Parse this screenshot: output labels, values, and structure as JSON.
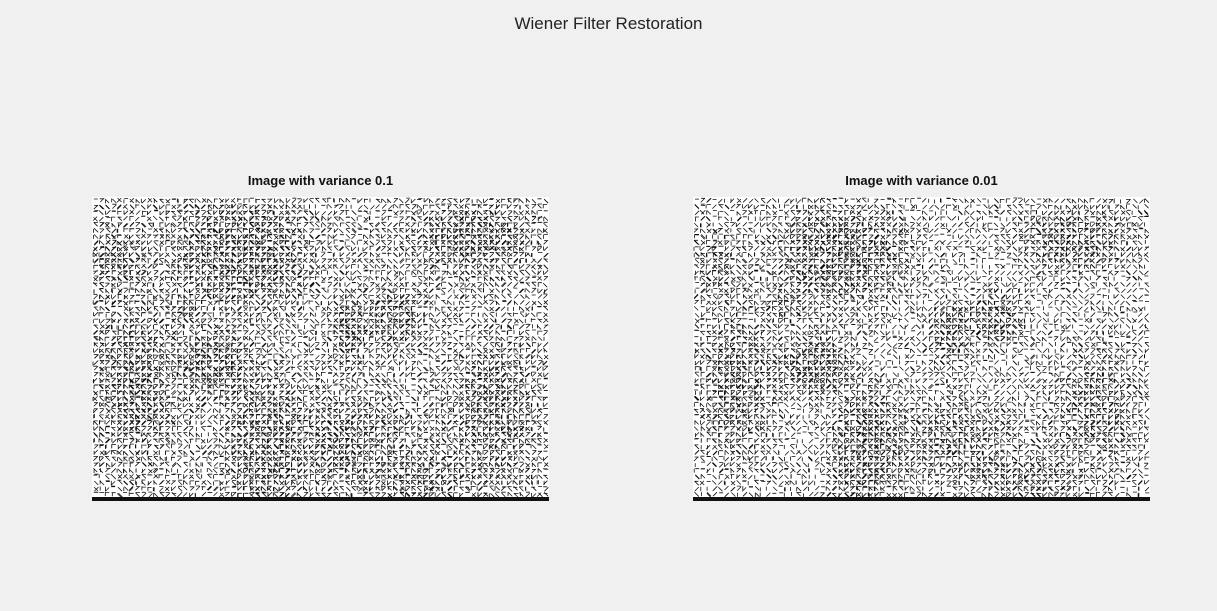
{
  "figure": {
    "title": "Wiener Filter Restoration"
  },
  "subplots": [
    {
      "title": "Image with variance 0.1",
      "variance": 0.1
    },
    {
      "title": "Image with variance 0.01",
      "variance": 0.01
    }
  ],
  "colors": {
    "figure_background": "#f0f0f0",
    "ink": "#111111"
  }
}
